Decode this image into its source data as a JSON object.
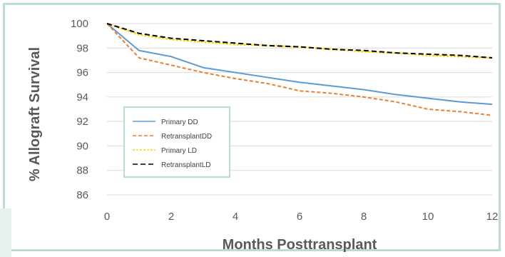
{
  "chart_data": {
    "type": "line",
    "title": "",
    "xlabel": "Months Posttransplant",
    "ylabel": "% Allograft Survival",
    "xlim": [
      0,
      12
    ],
    "ylim": [
      86,
      100
    ],
    "x_ticks": [
      "0",
      "2",
      "4",
      "6",
      "8",
      "10",
      "12"
    ],
    "y_ticks": [
      "86",
      "88",
      "90",
      "92",
      "94",
      "96",
      "98",
      "100"
    ],
    "grid": "horizontal",
    "legend_position": "lower-left",
    "series": [
      {
        "name": "Primary DD",
        "color": "#5b9bd5",
        "style": "solid",
        "x": [
          0,
          1,
          2,
          3,
          4,
          5,
          6,
          7,
          8,
          9,
          10,
          11,
          12
        ],
        "y": [
          100,
          97.8,
          97.3,
          96.4,
          96.0,
          95.6,
          95.2,
          94.9,
          94.6,
          94.2,
          93.9,
          93.6,
          93.4
        ]
      },
      {
        "name": "RetransplantDD",
        "color": "#ed7d31",
        "style": "dashed",
        "x": [
          0,
          1,
          2,
          3,
          4,
          5,
          6,
          7,
          8,
          9,
          10,
          11,
          12
        ],
        "y": [
          100,
          97.2,
          96.6,
          96.0,
          95.5,
          95.1,
          94.5,
          94.3,
          94.0,
          93.6,
          93.0,
          92.8,
          92.5
        ]
      },
      {
        "name": "Primary LD",
        "color": "#ffd700",
        "style": "dotted",
        "x": [
          0,
          1,
          2,
          3,
          4,
          5,
          6,
          7,
          8,
          9,
          10,
          11,
          12
        ],
        "y": [
          100,
          99.1,
          98.7,
          98.5,
          98.3,
          98.2,
          98.1,
          97.9,
          97.7,
          97.6,
          97.4,
          97.3,
          97.2
        ]
      },
      {
        "name": "RetransplantLD",
        "color": "#000000",
        "style": "dashed",
        "x": [
          0,
          1,
          2,
          3,
          4,
          5,
          6,
          7,
          8,
          9,
          10,
          11,
          12
        ],
        "y": [
          100,
          99.2,
          98.8,
          98.6,
          98.4,
          98.2,
          98.1,
          97.9,
          97.8,
          97.6,
          97.5,
          97.4,
          97.2
        ]
      }
    ]
  }
}
